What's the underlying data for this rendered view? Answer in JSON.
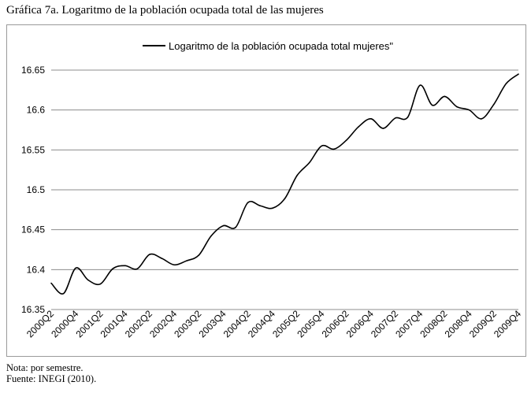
{
  "figure": {
    "title": "Gráfica 7a. Logaritmo de la población ocupada total de las mujeres",
    "note": "Nota: por semestre.",
    "source": "Fuente: INEGI (2010)."
  },
  "chart_data": {
    "type": "line",
    "title": "",
    "xlabel": "",
    "ylabel": "",
    "ylim": [
      16.35,
      16.65
    ],
    "yticks": [
      "16.35",
      "16.4",
      "16.45",
      "16.5",
      "16.55",
      "16.6",
      "16.65"
    ],
    "grid": "horizontal",
    "legend_position": "top-center",
    "x": [
      "2000Q2",
      "2000Q3",
      "2000Q4",
      "2001Q1",
      "2001Q2",
      "2001Q3",
      "2001Q4",
      "2002Q1",
      "2002Q2",
      "2002Q3",
      "2002Q4",
      "2003Q1",
      "2003Q2",
      "2003Q3",
      "2003Q4",
      "2004Q1",
      "2004Q2",
      "2004Q3",
      "2004Q4",
      "2005Q1",
      "2005Q2",
      "2005Q3",
      "2005Q4",
      "2006Q1",
      "2006Q2",
      "2006Q3",
      "2006Q4",
      "2007Q1",
      "2007Q2",
      "2007Q3",
      "2007Q4",
      "2008Q1",
      "2008Q2",
      "2008Q3",
      "2008Q4",
      "2009Q1",
      "2009Q2",
      "2009Q3",
      "2009Q4"
    ],
    "x_tick_labels": [
      "2000Q2",
      "2000Q4",
      "2001Q2",
      "2001Q4",
      "2002Q2",
      "2002Q4",
      "2003Q2",
      "2003Q4",
      "2004Q2",
      "2004Q4",
      "2005Q2",
      "2005Q4",
      "2006Q2",
      "2006Q4",
      "2007Q2",
      "2007Q4",
      "2008Q2",
      "2008Q4",
      "2009Q2",
      "2009Q4"
    ],
    "series": [
      {
        "name": "Logaritmo de la población ocupada total mujeres\"",
        "color": "#000000",
        "values": [
          16.383,
          16.37,
          16.402,
          16.387,
          16.382,
          16.401,
          16.405,
          16.401,
          16.419,
          16.414,
          16.406,
          16.411,
          16.418,
          16.442,
          16.455,
          16.453,
          16.484,
          16.48,
          16.477,
          16.489,
          16.518,
          16.534,
          16.555,
          16.551,
          16.562,
          16.579,
          16.589,
          16.577,
          16.59,
          16.591,
          16.631,
          16.606,
          16.617,
          16.604,
          16.6,
          16.589,
          16.607,
          16.633,
          16.645
        ]
      }
    ]
  }
}
